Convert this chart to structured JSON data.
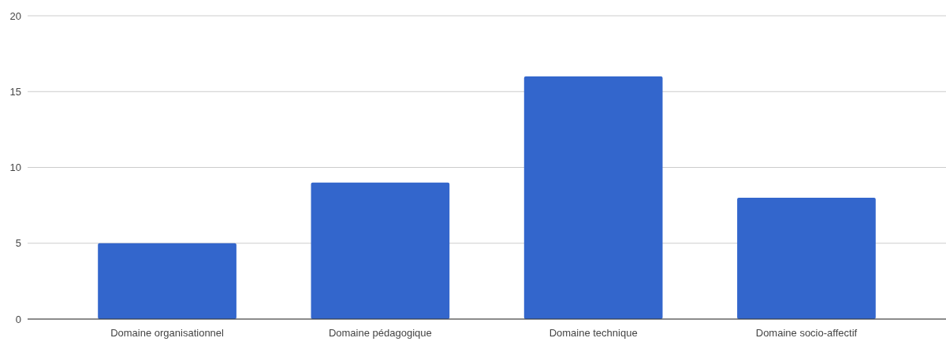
{
  "chart_data": {
    "type": "bar",
    "categories": [
      "Domaine organisationnel",
      "Domaine pédagogique",
      "Domaine technique",
      "Domaine socio-affectif"
    ],
    "values": [
      5,
      9,
      16,
      8
    ],
    "color": "#3366cc",
    "ylim": [
      0,
      20
    ],
    "yticks": [
      0,
      5,
      10,
      15,
      20
    ],
    "grid": "y"
  }
}
